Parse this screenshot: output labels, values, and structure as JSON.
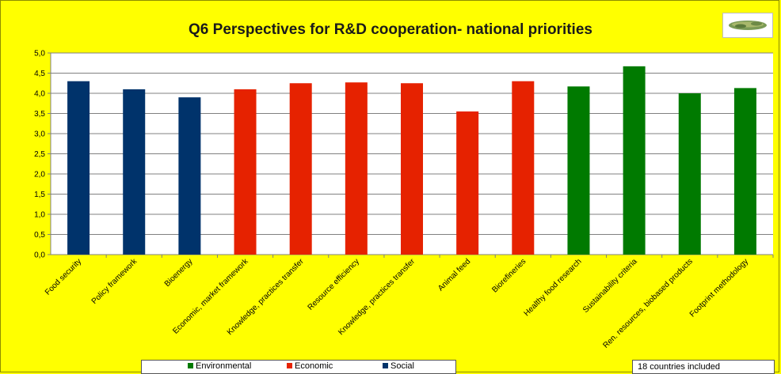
{
  "chart_data": {
    "type": "bar",
    "title": "Q6 Perspectives for R&D cooperation- national priorities",
    "xlabel": "",
    "ylabel": "",
    "categories": [
      "Food security",
      "Policy framework",
      "Bioenergy",
      "Economic, market framework",
      "Knowledge, practices transfer",
      "Resource efficiency",
      "Knowledge, practices transfer",
      "Animal feed",
      "Biorefineries",
      "Healthy food research",
      "Sustainability criteria",
      "Ren. resources, biobased products",
      "Footprint methodology"
    ],
    "values": [
      4.3,
      4.1,
      3.9,
      4.1,
      4.25,
      4.27,
      4.25,
      3.55,
      4.3,
      4.17,
      4.67,
      4.0,
      4.13
    ],
    "groups": [
      "Social",
      "Social",
      "Social",
      "Economic",
      "Economic",
      "Economic",
      "Economic",
      "Economic",
      "Economic",
      "Environmental",
      "Environmental",
      "Environmental",
      "Environmental"
    ],
    "ylim": [
      0,
      5
    ],
    "yticks": [
      "0,0",
      "0,5",
      "1,0",
      "1,5",
      "2,0",
      "2,5",
      "3,0",
      "3,5",
      "4,0",
      "4,5",
      "5,0"
    ],
    "grid": true,
    "legend": {
      "placement": "bottom",
      "entries": [
        {
          "name": "Environmental",
          "color": "#007a00"
        },
        {
          "name": "Economic",
          "color": "#e62200"
        },
        {
          "name": "Social",
          "color": "#00336b"
        }
      ]
    }
  },
  "note": "18 countries included",
  "colors": {
    "background": "#ffff00",
    "Social": "#00336b",
    "Economic": "#e62200",
    "Environmental": "#007a00"
  }
}
